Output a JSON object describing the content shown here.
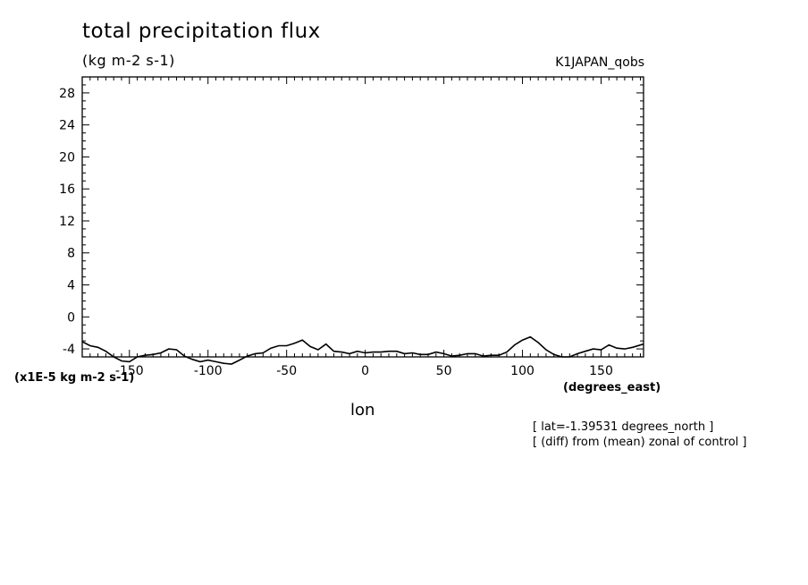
{
  "header": {
    "title": "total precipitation flux",
    "units": "(kg m-2 s-1)",
    "run": "K1JAPAN_qobs"
  },
  "footer": {
    "scale_label": "(x1E-5 kg m-2 s-1)",
    "x_unit": "(degrees_east)",
    "note_lat": "[ lat=-1.39531 degrees_north ]",
    "note_op": "[ (diff) from (mean) zonal of control ]"
  },
  "chart_data": {
    "type": "line",
    "title": "total precipitation flux",
    "subtitle": "(kg m-2 s-1)",
    "xlabel": "lon",
    "ylabel": "",
    "xlim": [
      -180,
      177
    ],
    "ylim": [
      -5,
      30
    ],
    "xticks": [
      -150,
      -100,
      -50,
      0,
      50,
      100,
      150
    ],
    "xtick_labels": [
      "-150",
      "-100",
      "-50",
      "0",
      "50",
      "100",
      "150"
    ],
    "yticks": [
      -4,
      0,
      4,
      8,
      12,
      16,
      20,
      24,
      28
    ],
    "ytick_labels": [
      "-4",
      "0",
      "4",
      "8",
      "12",
      "16",
      "20",
      "24",
      "28"
    ],
    "grid": false,
    "line_color": "#000000",
    "series": [
      {
        "x": [
          -180,
          -175,
          -170,
          -165,
          -160,
          -155,
          -150,
          -145,
          -140,
          -135,
          -130,
          -125,
          -120,
          -115,
          -110,
          -105,
          -100,
          -95,
          -90,
          -85,
          -80,
          -75,
          -70,
          -65,
          -60,
          -55,
          -50,
          -45,
          -40,
          -35,
          -30,
          -25,
          -20,
          -15,
          -10,
          -5,
          0,
          5,
          10,
          15,
          20,
          25,
          30,
          35,
          40,
          45,
          50,
          55,
          60,
          65,
          70,
          75,
          80,
          85,
          90,
          95,
          100,
          105,
          110,
          115,
          120,
          125,
          130,
          135,
          140,
          145,
          150,
          155,
          160,
          165,
          170,
          177
        ],
        "y": [
          -3.1,
          -3.6,
          -3.8,
          -4.3,
          -5.0,
          -5.5,
          -5.6,
          -5.0,
          -4.8,
          -4.7,
          -4.5,
          -4.0,
          -4.1,
          -4.9,
          -5.3,
          -5.6,
          -5.4,
          -5.6,
          -5.8,
          -5.9,
          -5.4,
          -4.9,
          -4.6,
          -4.5,
          -3.9,
          -3.6,
          -3.6,
          -3.3,
          -2.9,
          -3.7,
          -4.1,
          -3.4,
          -4.3,
          -4.4,
          -4.6,
          -4.3,
          -4.5,
          -4.4,
          -4.4,
          -4.3,
          -4.3,
          -4.6,
          -4.5,
          -4.7,
          -4.7,
          -4.4,
          -4.6,
          -4.9,
          -4.8,
          -4.6,
          -4.6,
          -4.9,
          -4.8,
          -4.8,
          -4.4,
          -3.5,
          -2.9,
          -2.5,
          -3.2,
          -4.1,
          -4.7,
          -5.0,
          -5.0,
          -4.6,
          -4.3,
          -4.0,
          -4.1,
          -3.5,
          -3.9,
          -4.0,
          -3.8,
          -3.4
        ]
      }
    ]
  }
}
